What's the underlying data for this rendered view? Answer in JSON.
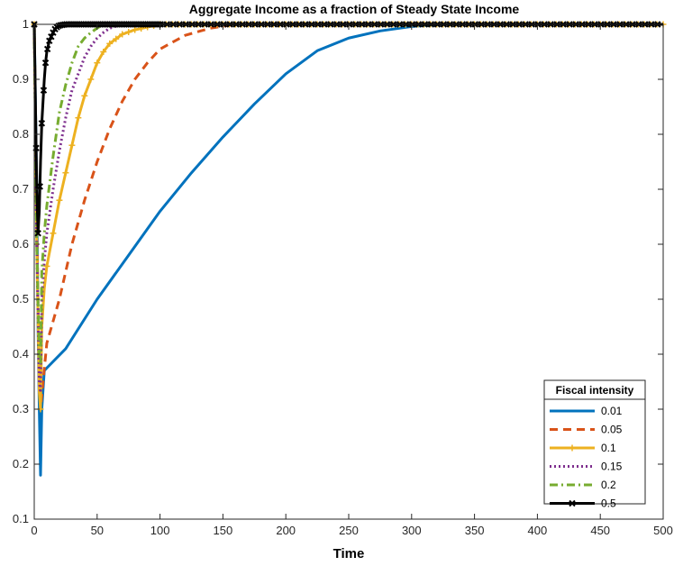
{
  "chart_data": {
    "type": "line",
    "title": "Aggregate Income as a fraction of Steady State Income",
    "xlabel": "Time",
    "ylabel": "",
    "xlim": [
      0,
      500
    ],
    "ylim": [
      0.1,
      1
    ],
    "xticks": [
      0,
      50,
      100,
      150,
      200,
      250,
      300,
      350,
      400,
      450,
      500
    ],
    "yticks": [
      0.1,
      0.2,
      0.3,
      0.4,
      0.5,
      0.6,
      0.7,
      0.8,
      0.9,
      1
    ],
    "grid": false,
    "legend": {
      "title": "Fiscal intensity",
      "placement": "bottom-right"
    },
    "series": [
      {
        "name": "0.01",
        "color": "#0072BD",
        "dash": "solid",
        "marker": "none",
        "points": [
          [
            0,
            1
          ],
          [
            2,
            0.7
          ],
          [
            3,
            0.45
          ],
          [
            4,
            0.3
          ],
          [
            5,
            0.18
          ],
          [
            6,
            0.3
          ],
          [
            8,
            0.37
          ],
          [
            10,
            0.375
          ],
          [
            25,
            0.41
          ],
          [
            50,
            0.5
          ],
          [
            75,
            0.58
          ],
          [
            100,
            0.66
          ],
          [
            125,
            0.73
          ],
          [
            150,
            0.795
          ],
          [
            175,
            0.855
          ],
          [
            200,
            0.91
          ],
          [
            225,
            0.952
          ],
          [
            250,
            0.975
          ],
          [
            275,
            0.988
          ],
          [
            300,
            0.996
          ],
          [
            325,
            1
          ],
          [
            500,
            1
          ]
        ]
      },
      {
        "name": "0.05",
        "color": "#D95319",
        "dash": "dashed",
        "marker": "none",
        "points": [
          [
            0,
            1
          ],
          [
            2,
            0.65
          ],
          [
            4,
            0.34
          ],
          [
            5,
            0.3
          ],
          [
            7,
            0.35
          ],
          [
            10,
            0.42
          ],
          [
            20,
            0.5
          ],
          [
            30,
            0.6
          ],
          [
            40,
            0.68
          ],
          [
            50,
            0.75
          ],
          [
            60,
            0.81
          ],
          [
            70,
            0.86
          ],
          [
            80,
            0.9
          ],
          [
            90,
            0.93
          ],
          [
            100,
            0.955
          ],
          [
            120,
            0.98
          ],
          [
            140,
            0.993
          ],
          [
            160,
            1
          ],
          [
            500,
            1
          ]
        ]
      },
      {
        "name": "0.1",
        "color": "#EDB120",
        "dash": "solid",
        "marker": "plus",
        "points": [
          [
            0,
            1
          ],
          [
            2,
            0.6
          ],
          [
            4,
            0.33
          ],
          [
            5,
            0.3
          ],
          [
            6,
            0.45
          ],
          [
            8,
            0.52
          ],
          [
            10,
            0.56
          ],
          [
            15,
            0.62
          ],
          [
            20,
            0.68
          ],
          [
            25,
            0.73
          ],
          [
            30,
            0.78
          ],
          [
            35,
            0.83
          ],
          [
            40,
            0.87
          ],
          [
            45,
            0.9
          ],
          [
            50,
            0.93
          ],
          [
            55,
            0.95
          ],
          [
            60,
            0.965
          ],
          [
            70,
            0.982
          ],
          [
            80,
            0.99
          ],
          [
            90,
            0.995
          ],
          [
            100,
            1
          ],
          [
            500,
            1
          ]
        ]
      },
      {
        "name": "0.15",
        "color": "#7E2F8E",
        "dash": "dotted",
        "marker": "none",
        "points": [
          [
            0,
            1
          ],
          [
            2,
            0.6
          ],
          [
            4,
            0.35
          ],
          [
            5,
            0.33
          ],
          [
            6,
            0.5
          ],
          [
            8,
            0.57
          ],
          [
            10,
            0.62
          ],
          [
            15,
            0.7
          ],
          [
            20,
            0.77
          ],
          [
            25,
            0.83
          ],
          [
            30,
            0.88
          ],
          [
            35,
            0.91
          ],
          [
            40,
            0.94
          ],
          [
            45,
            0.96
          ],
          [
            50,
            0.975
          ],
          [
            55,
            0.985
          ],
          [
            60,
            0.993
          ],
          [
            70,
            1
          ],
          [
            500,
            1
          ]
        ]
      },
      {
        "name": "0.2",
        "color": "#77AC30",
        "dash": "dashdot",
        "marker": "none",
        "points": [
          [
            0,
            1
          ],
          [
            2,
            0.6
          ],
          [
            4,
            0.4
          ],
          [
            5,
            0.38
          ],
          [
            6,
            0.55
          ],
          [
            8,
            0.62
          ],
          [
            10,
            0.67
          ],
          [
            15,
            0.76
          ],
          [
            20,
            0.84
          ],
          [
            25,
            0.89
          ],
          [
            30,
            0.93
          ],
          [
            35,
            0.96
          ],
          [
            40,
            0.975
          ],
          [
            45,
            0.985
          ],
          [
            50,
            0.993
          ],
          [
            55,
            1
          ],
          [
            500,
            1
          ]
        ]
      },
      {
        "name": "0.5",
        "color": "#000000",
        "dash": "solid",
        "marker": "x",
        "points": [
          [
            0,
            1
          ],
          [
            1,
            0.85
          ],
          [
            2,
            0.7
          ],
          [
            3,
            0.62
          ],
          [
            4,
            0.66
          ],
          [
            5,
            0.75
          ],
          [
            6,
            0.82
          ],
          [
            7,
            0.86
          ],
          [
            8,
            0.9
          ],
          [
            9,
            0.93
          ],
          [
            10,
            0.95
          ],
          [
            12,
            0.97
          ],
          [
            14,
            0.98
          ],
          [
            16,
            0.99
          ],
          [
            18,
            0.995
          ],
          [
            20,
            0.998
          ],
          [
            25,
            1
          ],
          [
            500,
            1
          ]
        ]
      }
    ]
  }
}
